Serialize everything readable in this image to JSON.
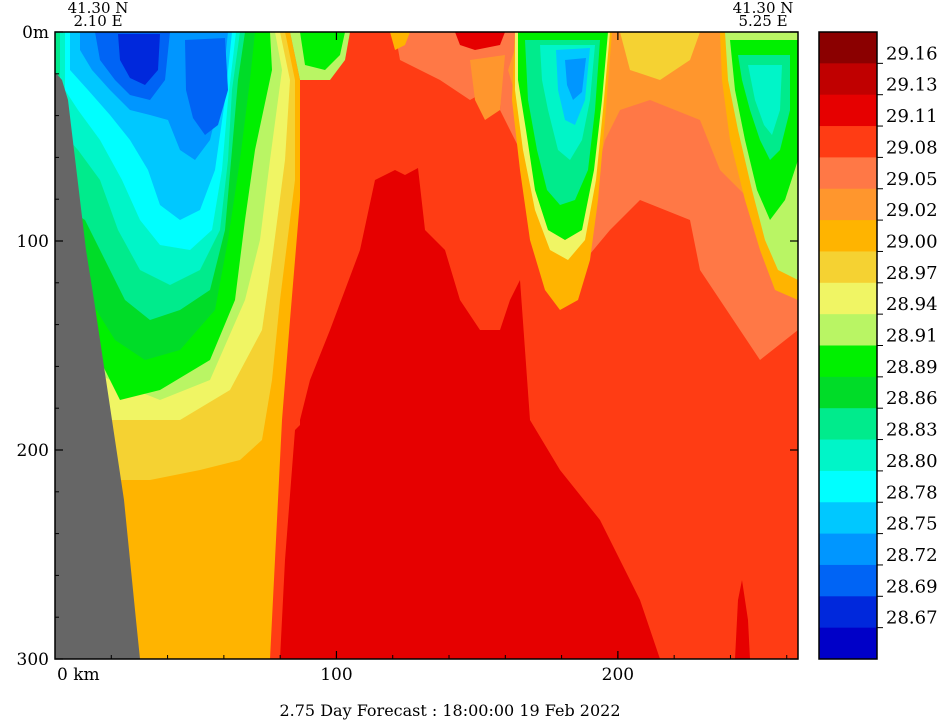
{
  "chart_data": {
    "type": "heatmap",
    "title": "2.75 Day Forecast : 18:00:00  19 Feb 2022",
    "start_lat": "41.30 N",
    "start_lon": "2.10 E",
    "end_lat": "41.30 N",
    "end_lon": "5.25 E",
    "x_unit_label": "0 km",
    "xlim": [
      0,
      264
    ],
    "ylim": [
      300,
      0
    ],
    "y_ticks": [
      {
        "value": 0,
        "label": "0m"
      },
      {
        "value": 100,
        "label": "100"
      },
      {
        "value": 200,
        "label": "200"
      },
      {
        "value": 300,
        "label": "300"
      }
    ],
    "x_ticks": [
      {
        "value": 100,
        "label": "100"
      },
      {
        "value": 200,
        "label": "200"
      }
    ],
    "colorbar": {
      "levels": [
        "29.16",
        "29.13",
        "29.11",
        "29.08",
        "29.05",
        "29.02",
        "29.00",
        "28.97",
        "28.94",
        "28.91",
        "28.89",
        "28.86",
        "28.83",
        "28.80",
        "28.78",
        "28.75",
        "28.72",
        "28.69",
        "28.67"
      ],
      "colors": [
        "#8b0000",
        "#c00000",
        "#e60000",
        "#ff3c14",
        "#ff7846",
        "#ff962d",
        "#ffb400",
        "#f5d232",
        "#f0f564",
        "#b9f564",
        "#00f000",
        "#00dc28",
        "#00eb8c",
        "#00f5c8",
        "#00ffff",
        "#00c8ff",
        "#0096ff",
        "#0064f5",
        "#0028dc",
        "#0000c8"
      ]
    },
    "land_color": "#666666"
  }
}
